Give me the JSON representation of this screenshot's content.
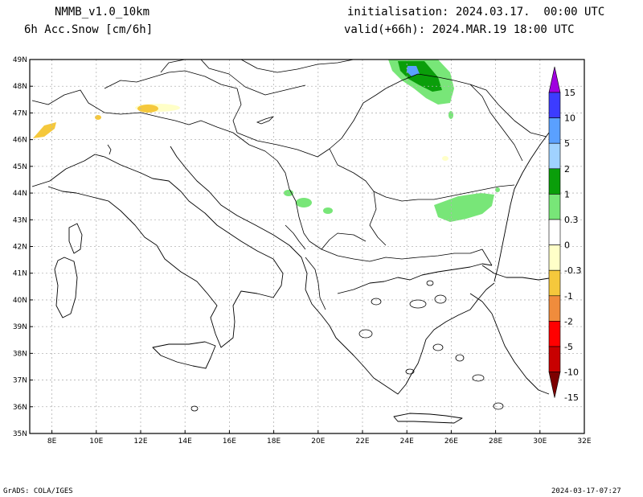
{
  "header": {
    "model": "NMMB_v1.0_10km",
    "field": "6h Acc.Snow [cm/6h]",
    "init": "initialisation: 2024.03.17.  00:00 UTC",
    "valid": "valid(+66h): 2024.MAR.19 18:00 UTC"
  },
  "footer": {
    "credit": "GrADS: COLA/IGES",
    "timestamp": "2024-03-17-07:27"
  },
  "map": {
    "lat_labels": [
      "49N",
      "48N",
      "47N",
      "46N",
      "45N",
      "44N",
      "43N",
      "42N",
      "41N",
      "40N",
      "39N",
      "38N",
      "37N",
      "36N",
      "35N"
    ],
    "lon_labels": [
      "8E",
      "10E",
      "12E",
      "14E",
      "16E",
      "18E",
      "20E",
      "22E",
      "24E",
      "26E",
      "28E",
      "30E",
      "32E"
    ]
  },
  "colorbar": {
    "labels": [
      "15",
      "10",
      "5",
      "2",
      "1",
      "0.3",
      "0",
      "-0.3",
      "-1",
      "-2",
      "-5",
      "-10",
      "-15"
    ],
    "colors": [
      "#a000e0",
      "#3c3cff",
      "#5aa0ff",
      "#a0d2ff",
      "#0a9e0a",
      "#78e678",
      "#ffffff",
      "#ffffc8",
      "#f5c83c",
      "#f08c3c",
      "#ff0000",
      "#c80000",
      "#7d0000"
    ]
  },
  "colors": {
    "snow_light": "#78e678",
    "snow_mid": "#0a9e0a",
    "snow_high": "#5aa0ff",
    "melt_light": "#ffffc8",
    "melt_mid": "#f5c83c",
    "melt_high": "#f08c3c"
  }
}
